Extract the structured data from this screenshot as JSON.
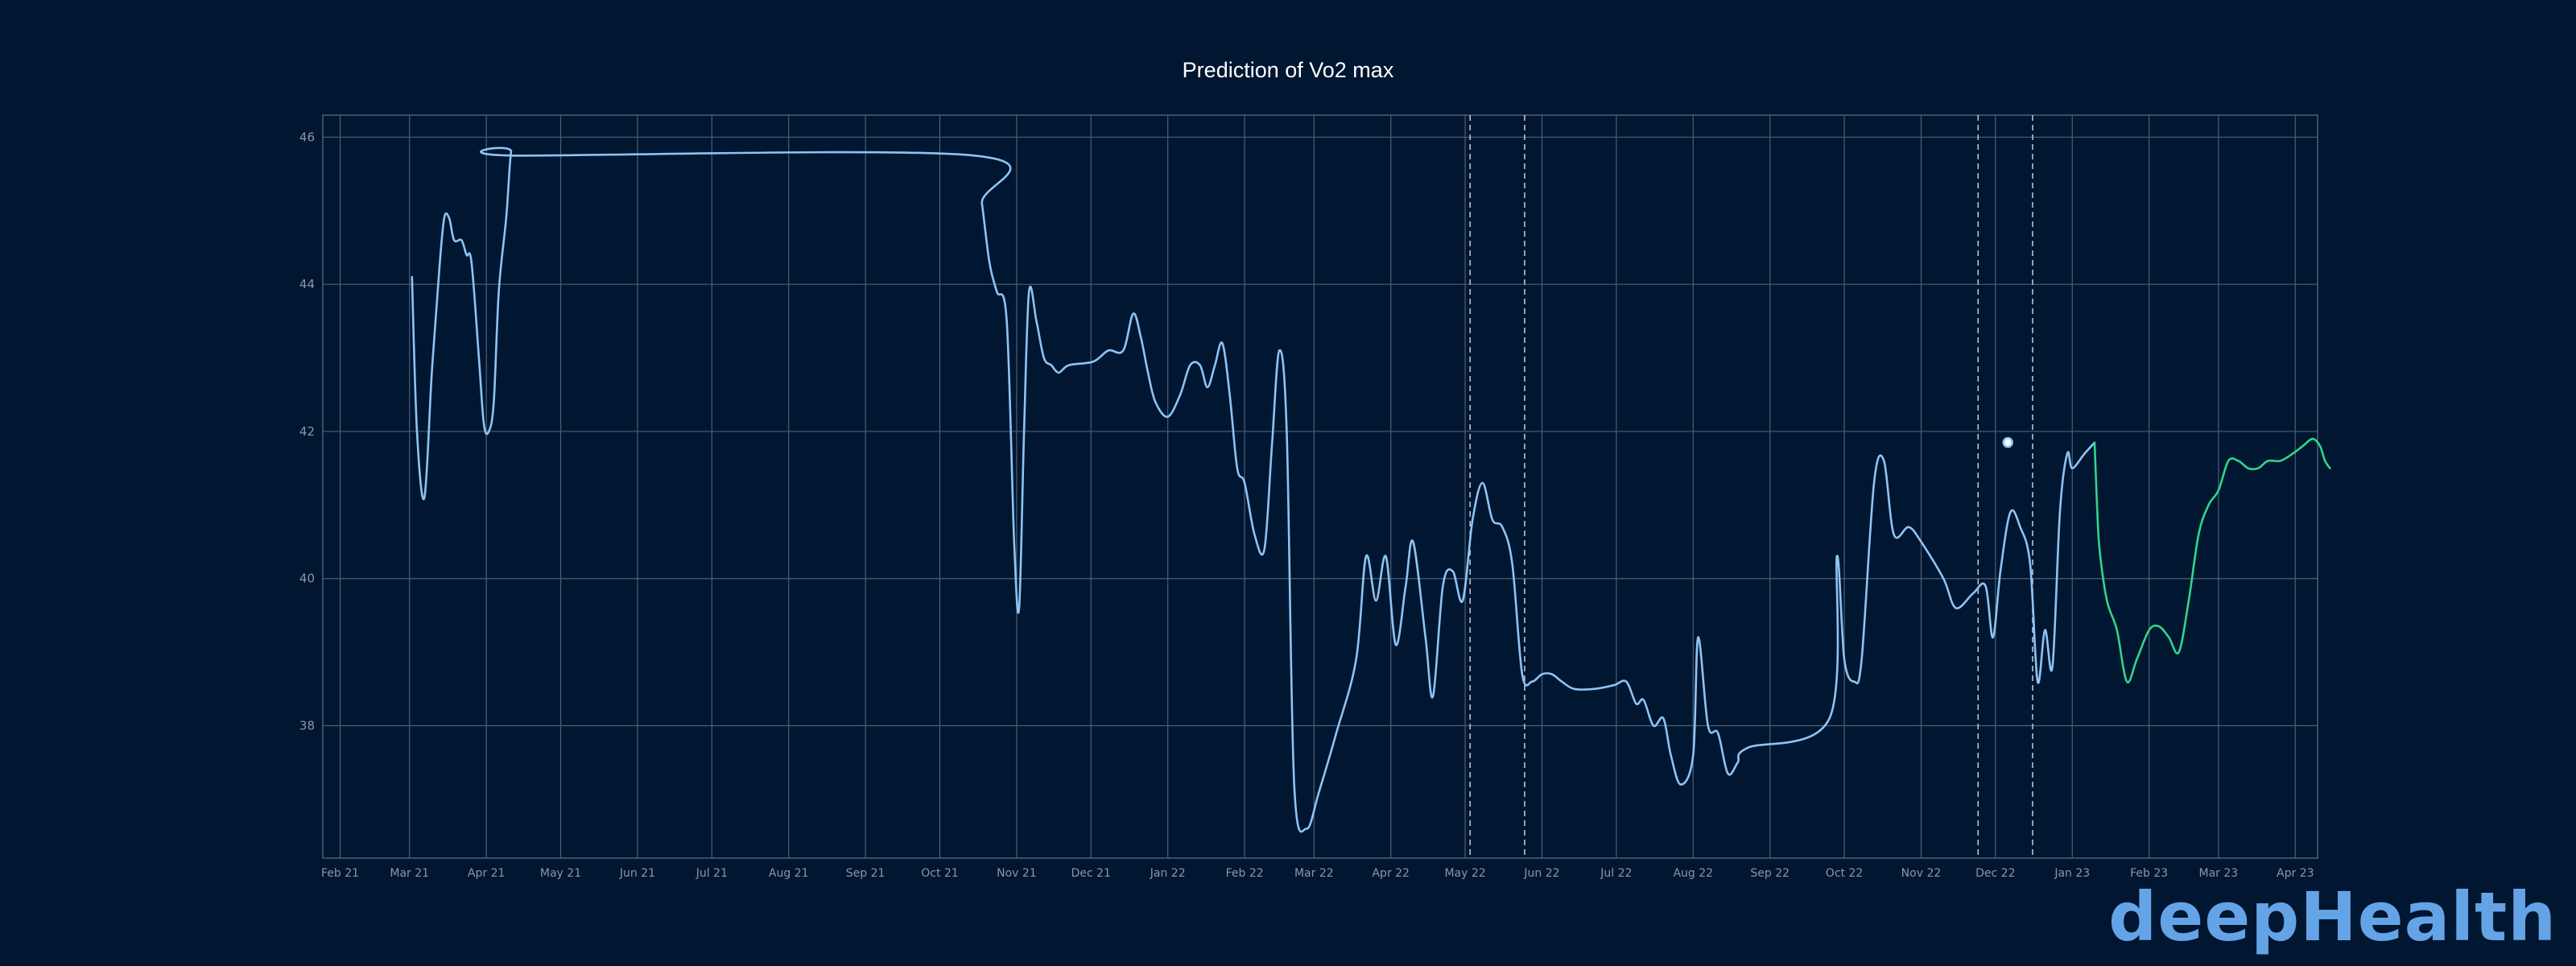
{
  "brand": {
    "text": "deepHealth",
    "color": "#64a4e6"
  },
  "colors": {
    "background": "#011631",
    "grid": "#4d5f78",
    "history": "#8dc4f4",
    "prediction": "#30d58a",
    "marker": "#ffffff",
    "tick_text": "#8a96a8"
  },
  "chart_data": {
    "type": "line",
    "title": "Prediction of Vo2 max",
    "xlabel": "",
    "ylabel": "",
    "x_ticks": [
      "Feb 21",
      "Mar 21",
      "Apr 21",
      "May 21",
      "Jun 21",
      "Jul 21",
      "Aug 21",
      "Sep 21",
      "Oct 21",
      "Nov 21",
      "Dec 21",
      "Jan 22",
      "Feb 22",
      "Mar 22",
      "Apr 22",
      "May 22",
      "Jun 22",
      "Jul 22",
      "Aug 22",
      "Sep 22",
      "Oct 22",
      "Nov 22",
      "Dec 22",
      "Jan 23",
      "Feb 23",
      "Mar 23",
      "Apr 23"
    ],
    "y_ticks": [
      38,
      40,
      42,
      44,
      46
    ],
    "xlim": [
      "2021-01-25",
      "2023-04-10"
    ],
    "ylim": [
      36.2,
      46.3
    ],
    "grid": true,
    "vlines_dashed": [
      "2022-05-03",
      "2022-05-25",
      "2022-11-24",
      "2022-12-16"
    ],
    "marker": {
      "x": "2022-12-06",
      "y": 41.85
    },
    "series": [
      {
        "name": "",
        "points": [
          [
            "2021-03-02",
            44.1
          ],
          [
            "2021-03-04",
            42.0
          ],
          [
            "2021-03-07",
            41.1
          ],
          [
            "2021-03-10",
            42.8
          ],
          [
            "2021-03-13",
            44.2
          ],
          [
            "2021-03-15",
            44.9
          ],
          [
            "2021-03-17",
            44.9
          ],
          [
            "2021-03-19",
            44.6
          ],
          [
            "2021-03-22",
            44.6
          ],
          [
            "2021-03-24",
            44.4
          ],
          [
            "2021-03-26",
            44.3
          ],
          [
            "2021-03-29",
            43.0
          ],
          [
            "2021-03-31",
            42.1
          ],
          [
            "2021-04-02",
            42.0
          ],
          [
            "2021-04-04",
            42.4
          ],
          [
            "2021-04-06",
            43.9
          ],
          [
            "2021-04-09",
            44.9
          ],
          [
            "2021-04-11",
            45.8
          ],
          [
            "2021-04-13",
            45.75
          ],
          [
            "2021-10-15",
            45.75
          ],
          [
            "2021-10-18",
            45.1
          ],
          [
            "2021-10-21",
            44.3
          ],
          [
            "2021-10-24",
            43.9
          ],
          [
            "2021-10-28",
            43.5
          ],
          [
            "2021-10-31",
            40.5
          ],
          [
            "2021-11-02",
            39.6
          ],
          [
            "2021-11-04",
            42.0
          ],
          [
            "2021-11-06",
            43.9
          ],
          [
            "2021-11-09",
            43.5
          ],
          [
            "2021-11-12",
            43.0
          ],
          [
            "2021-11-15",
            42.9
          ],
          [
            "2021-11-18",
            42.8
          ],
          [
            "2021-11-22",
            42.9
          ],
          [
            "2021-12-02",
            42.95
          ],
          [
            "2021-12-08",
            43.1
          ],
          [
            "2021-12-14",
            43.1
          ],
          [
            "2021-12-18",
            43.6
          ],
          [
            "2021-12-21",
            43.3
          ],
          [
            "2021-12-24",
            42.8
          ],
          [
            "2021-12-27",
            42.4
          ],
          [
            "2022-01-01",
            42.2
          ],
          [
            "2022-01-06",
            42.5
          ],
          [
            "2022-01-10",
            42.9
          ],
          [
            "2022-01-14",
            42.9
          ],
          [
            "2022-01-17",
            42.6
          ],
          [
            "2022-01-20",
            42.9
          ],
          [
            "2022-01-23",
            43.2
          ],
          [
            "2022-01-26",
            42.5
          ],
          [
            "2022-01-29",
            41.5
          ],
          [
            "2022-02-01",
            41.3
          ],
          [
            "2022-02-05",
            40.6
          ],
          [
            "2022-02-09",
            40.4
          ],
          [
            "2022-02-12",
            41.8
          ],
          [
            "2022-02-15",
            43.1
          ],
          [
            "2022-02-18",
            42.0
          ],
          [
            "2022-02-21",
            37.2
          ],
          [
            "2022-02-26",
            36.6
          ],
          [
            "2022-03-03",
            37.1
          ],
          [
            "2022-03-10",
            37.9
          ],
          [
            "2022-03-18",
            38.9
          ],
          [
            "2022-03-22",
            40.3
          ],
          [
            "2022-03-26",
            39.7
          ],
          [
            "2022-03-30",
            40.3
          ],
          [
            "2022-04-03",
            39.1
          ],
          [
            "2022-04-07",
            39.9
          ],
          [
            "2022-04-10",
            40.5
          ],
          [
            "2022-04-15",
            39.2
          ],
          [
            "2022-04-18",
            38.4
          ],
          [
            "2022-04-22",
            39.9
          ],
          [
            "2022-04-26",
            40.1
          ],
          [
            "2022-04-30",
            39.7
          ],
          [
            "2022-05-04",
            40.8
          ],
          [
            "2022-05-08",
            41.3
          ],
          [
            "2022-05-12",
            40.8
          ],
          [
            "2022-05-16",
            40.7
          ],
          [
            "2022-05-20",
            40.2
          ],
          [
            "2022-05-24",
            38.7
          ],
          [
            "2022-05-28",
            38.6
          ],
          [
            "2022-06-01",
            38.7
          ],
          [
            "2022-06-05",
            38.7
          ],
          [
            "2022-06-09",
            38.6
          ],
          [
            "2022-06-14",
            38.5
          ],
          [
            "2022-06-22",
            38.5
          ],
          [
            "2022-06-30",
            38.55
          ],
          [
            "2022-07-05",
            38.6
          ],
          [
            "2022-07-09",
            38.3
          ],
          [
            "2022-07-12",
            38.35
          ],
          [
            "2022-07-16",
            38.0
          ],
          [
            "2022-07-20",
            38.1
          ],
          [
            "2022-07-23",
            37.6
          ],
          [
            "2022-07-27",
            37.2
          ],
          [
            "2022-08-01",
            37.6
          ],
          [
            "2022-08-03",
            39.2
          ],
          [
            "2022-08-07",
            38.0
          ],
          [
            "2022-08-11",
            37.9
          ],
          [
            "2022-08-15",
            37.35
          ],
          [
            "2022-08-19",
            37.5
          ],
          [
            "2022-08-23",
            37.7
          ],
          [
            "2022-09-25",
            38.1
          ],
          [
            "2022-09-28",
            40.3
          ],
          [
            "2022-10-01",
            38.9
          ],
          [
            "2022-10-05",
            38.6
          ],
          [
            "2022-10-08",
            38.9
          ],
          [
            "2022-10-13",
            41.3
          ],
          [
            "2022-10-17",
            41.6
          ],
          [
            "2022-10-21",
            40.6
          ],
          [
            "2022-10-27",
            40.7
          ],
          [
            "2022-11-01",
            40.5
          ],
          [
            "2022-11-10",
            40.0
          ],
          [
            "2022-11-15",
            39.6
          ],
          [
            "2022-11-22",
            39.8
          ],
          [
            "2022-11-27",
            39.9
          ],
          [
            "2022-11-30",
            39.2
          ],
          [
            "2022-12-03",
            40.1
          ],
          [
            "2022-12-07",
            40.9
          ],
          [
            "2022-12-11",
            40.7
          ],
          [
            "2022-12-15",
            40.2
          ],
          [
            "2022-12-18",
            38.6
          ],
          [
            "2022-12-21",
            39.3
          ],
          [
            "2022-12-24",
            38.8
          ],
          [
            "2022-12-27",
            40.9
          ],
          [
            "2022-12-30",
            41.7
          ],
          [
            "2023-01-01",
            41.5
          ],
          [
            "2023-01-06",
            41.7
          ],
          [
            "2023-01-10",
            41.85
          ]
        ]
      },
      {
        "name": "",
        "points": [
          [
            "2023-01-10",
            41.85
          ],
          [
            "2023-01-11",
            41.0
          ],
          [
            "2023-01-12",
            40.4
          ],
          [
            "2023-01-15",
            39.7
          ],
          [
            "2023-01-19",
            39.3
          ],
          [
            "2023-01-23",
            38.6
          ],
          [
            "2023-01-27",
            38.9
          ],
          [
            "2023-02-01",
            39.3
          ],
          [
            "2023-02-05",
            39.35
          ],
          [
            "2023-02-09",
            39.2
          ],
          [
            "2023-02-13",
            39.0
          ],
          [
            "2023-02-17",
            39.7
          ],
          [
            "2023-02-21",
            40.6
          ],
          [
            "2023-02-25",
            41.0
          ],
          [
            "2023-03-01",
            41.2
          ],
          [
            "2023-03-05",
            41.6
          ],
          [
            "2023-03-09",
            41.6
          ],
          [
            "2023-03-13",
            41.5
          ],
          [
            "2023-03-17",
            41.5
          ],
          [
            "2023-03-21",
            41.6
          ],
          [
            "2023-03-26",
            41.6
          ],
          [
            "2023-03-31",
            41.7
          ],
          [
            "2023-04-04",
            41.8
          ],
          [
            "2023-04-08",
            41.9
          ],
          [
            "2023-04-11",
            41.8
          ],
          [
            "2023-04-13",
            41.6
          ],
          [
            "2023-04-15",
            41.5
          ]
        ]
      }
    ]
  }
}
